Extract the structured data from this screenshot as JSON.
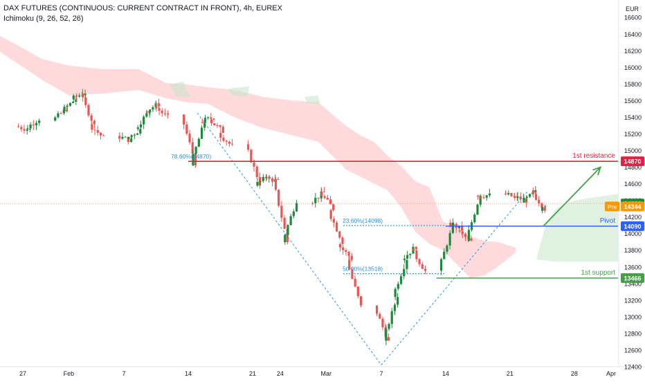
{
  "header": {
    "title": "DAX FUTURES (CONTINUOUS: CURRENT CONTRACT IN FRONT), 4h, EUREX",
    "indicator": "Ichimoku (9, 26, 52, 26)"
  },
  "colors": {
    "up": "#26a69a",
    "up_dark": "#1b8a3a",
    "down": "#ef5350",
    "resistance": "#e91e43",
    "pivot": "#2962ff",
    "support": "#43a047",
    "arrow": "#43a047",
    "fib": "#2196f3",
    "cloud_bear": "#ffcdd2",
    "cloud_bull": "#c8e6c9",
    "last_price": "#1b8a3a",
    "pre_market": "#ff9800"
  },
  "chart_data": {
    "type": "candlestick",
    "title": "DAX FUTURES (CONTINUOUS: CURRENT CONTRACT IN FRONT), 4h, EUREX",
    "currency": "EUR",
    "y_range": [
      12300,
      16800
    ],
    "y_ticks": [
      12400,
      12600,
      12800,
      13000,
      13200,
      13400,
      13600,
      13800,
      14000,
      14200,
      14400,
      14600,
      14800,
      15000,
      15200,
      15400,
      15600,
      15800,
      16000,
      16200,
      16400,
      16600
    ],
    "y_tick_labels": [
      "12400",
      "12600",
      "12800",
      "13000",
      "13200",
      "13400",
      "13600",
      "13800",
      "14000",
      "14200",
      "14400",
      "14600",
      "14800",
      "15000",
      "15200",
      "15400",
      "15600",
      "15800",
      "16000",
      "16200",
      "16400",
      "16600"
    ],
    "x_ticks": [
      "27",
      "Feb",
      "7",
      "14",
      "21",
      "24",
      "Mar",
      "7",
      "14",
      "21",
      "28",
      "Apr"
    ],
    "x_tick_dates": [
      "2022-01-27",
      "2022-02-01",
      "2022-02-07",
      "2022-02-14",
      "2022-02-21",
      "2022-02-24",
      "2022-03-01",
      "2022-03-07",
      "2022-03-14",
      "2022-03-21",
      "2022-03-28",
      "2022-04-01"
    ],
    "levels": [
      {
        "name": "1st resistance",
        "value": 14870,
        "label": "14870"
      },
      {
        "name": "Pivot",
        "value": 14090,
        "label": "14090"
      },
      {
        "name": "1st support",
        "value": 13466,
        "label": "13466"
      }
    ],
    "last_price": 14363,
    "pre_market": {
      "label": "Pre",
      "value": 14344
    },
    "fib_labels": [
      "78.60%(14870)",
      "23.60%(14098)",
      "50.00%(13518)"
    ],
    "fib_levels": [
      14870,
      14098,
      13518
    ],
    "swing_high": 15450,
    "swing_low": 12420,
    "projection": {
      "from": 14090,
      "to": 14800
    },
    "series": [
      {
        "name": "DAX close (4h, approx.)",
        "x": [
          "2022-01-27",
          "2022-01-28",
          "2022-01-31",
          "2022-02-01",
          "2022-02-02",
          "2022-02-03",
          "2022-02-04",
          "2022-02-07",
          "2022-02-08",
          "2022-02-09",
          "2022-02-10",
          "2022-02-11",
          "2022-02-14",
          "2022-02-15",
          "2022-02-16",
          "2022-02-17",
          "2022-02-18",
          "2022-02-21",
          "2022-02-22",
          "2022-02-23",
          "2022-02-24",
          "2022-02-25",
          "2022-02-28",
          "2022-03-01",
          "2022-03-02",
          "2022-03-03",
          "2022-03-04",
          "2022-03-07",
          "2022-03-08",
          "2022-03-09",
          "2022-03-10",
          "2022-03-11",
          "2022-03-14",
          "2022-03-15",
          "2022-03-16",
          "2022-03-17",
          "2022-03-18",
          "2022-03-21",
          "2022-03-22",
          "2022-03-23",
          "2022-03-24",
          "2022-03-25"
        ],
        "values": [
          15250,
          15380,
          15500,
          15620,
          15700,
          15300,
          15150,
          15120,
          15250,
          15480,
          15560,
          15400,
          14850,
          15350,
          15400,
          15230,
          15050,
          14600,
          14700,
          14630,
          13900,
          14400,
          14500,
          14300,
          13900,
          13700,
          13120,
          12700,
          13260,
          13700,
          13850,
          13550,
          14100,
          14050,
          13900,
          14480,
          14460,
          14430,
          14400,
          14500,
          14300,
          14363
        ]
      }
    ]
  },
  "annotations": {
    "resistance_label": "1st resistance",
    "pivot_label": "Pivot",
    "support_label": "1st support"
  }
}
